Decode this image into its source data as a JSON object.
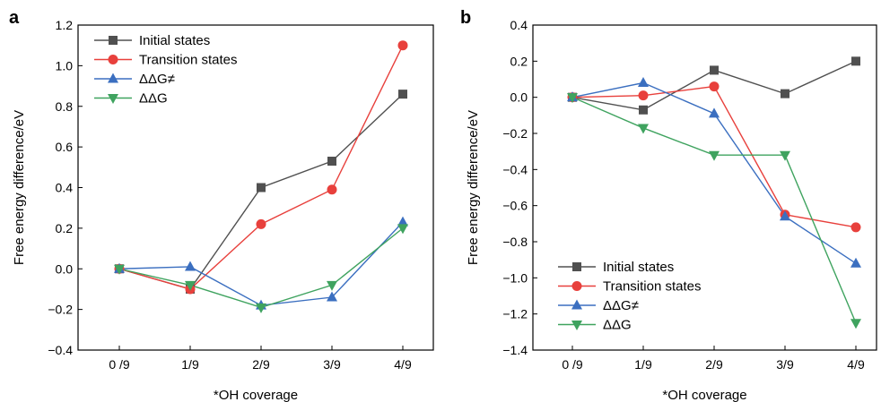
{
  "chart_data": [
    {
      "type": "line",
      "panel_label": "a",
      "xlabel": "*OH coverage",
      "ylabel": "Free energy difference/eV",
      "categories": [
        "0 /9",
        "1/9",
        "2/9",
        "3/9",
        "4/9"
      ],
      "ylim": [
        -0.4,
        1.2
      ],
      "yticks": [
        "-0.4",
        "-0.2",
        "0.0",
        "0.2",
        "0.4",
        "0.6",
        "0.8",
        "1.0",
        "1.2"
      ],
      "legend_position": "top-left",
      "grid": false,
      "series": [
        {
          "name": "Initial states",
          "color": "#505050",
          "marker": "square",
          "values": [
            0.0,
            -0.1,
            0.4,
            0.53,
            0.86
          ]
        },
        {
          "name": "Transition states",
          "color": "#e8403c",
          "marker": "circle",
          "values": [
            0.0,
            -0.1,
            0.22,
            0.39,
            1.1
          ]
        },
        {
          "name": "ΔΔG≠",
          "color": "#3b6fc0",
          "marker": "triangle-up",
          "values": [
            0.0,
            0.01,
            -0.18,
            -0.14,
            0.23
          ]
        },
        {
          "name": "ΔΔG",
          "color": "#3fa35f",
          "marker": "triangle-down",
          "values": [
            0.0,
            -0.08,
            -0.19,
            -0.08,
            0.2
          ]
        }
      ]
    },
    {
      "type": "line",
      "panel_label": "b",
      "xlabel": "*OH coverage",
      "ylabel": "Free energy difference/eV",
      "categories": [
        "0 /9",
        "1/9",
        "2/9",
        "3/9",
        "4/9"
      ],
      "ylim": [
        -1.4,
        0.4
      ],
      "yticks": [
        "-1.4",
        "-1.2",
        "-1.0",
        "-0.8",
        "-0.6",
        "-0.4",
        "-0.2",
        "0.0",
        "0.2",
        "0.4"
      ],
      "legend_position": "bottom-left",
      "grid": false,
      "series": [
        {
          "name": "Initial states",
          "color": "#505050",
          "marker": "square",
          "values": [
            0.0,
            -0.07,
            0.15,
            0.02,
            0.2
          ]
        },
        {
          "name": "Transition states",
          "color": "#e8403c",
          "marker": "circle",
          "values": [
            0.0,
            0.01,
            0.06,
            -0.65,
            -0.72
          ]
        },
        {
          "name": "ΔΔG≠",
          "color": "#3b6fc0",
          "marker": "triangle-up",
          "values": [
            0.0,
            0.08,
            -0.09,
            -0.66,
            -0.92
          ]
        },
        {
          "name": "ΔΔG",
          "color": "#3fa35f",
          "marker": "triangle-down",
          "values": [
            0.0,
            -0.17,
            -0.32,
            -0.32,
            -1.25
          ]
        }
      ]
    }
  ]
}
